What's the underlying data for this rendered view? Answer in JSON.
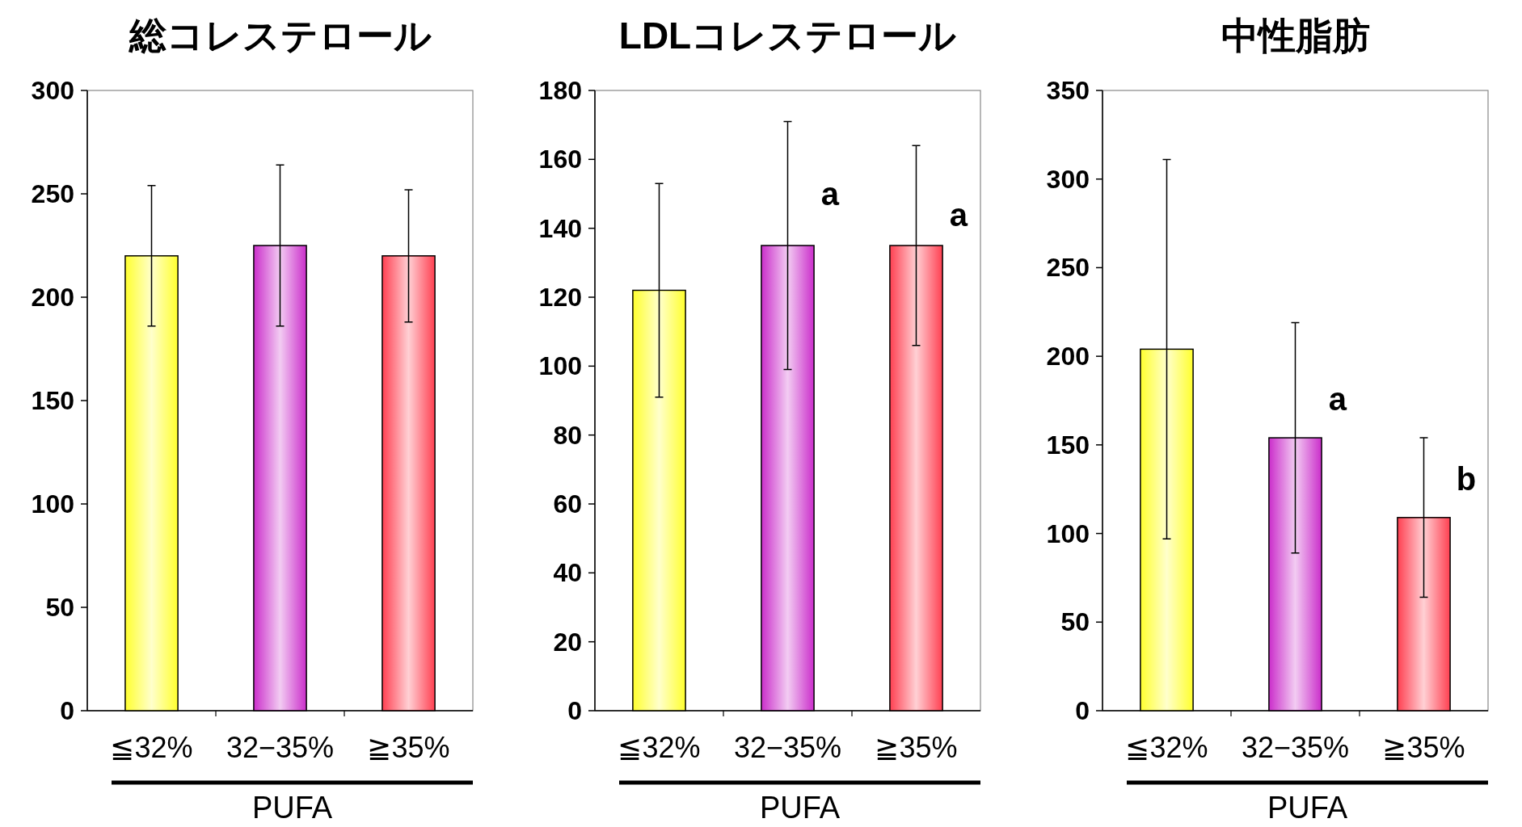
{
  "chart_data": [
    {
      "type": "bar",
      "title": "総コレステロール",
      "xlabel": "PUFA",
      "categories": [
        "≦32%",
        "32−35%",
        "≧35%"
      ],
      "values": [
        220,
        225,
        220
      ],
      "errors": [
        34,
        39,
        32
      ],
      "colors": [
        "#ffff33",
        "#cc33cc",
        "#ff4455"
      ],
      "ylim": [
        0,
        300
      ],
      "yticks": [
        0,
        50,
        100,
        150,
        200,
        250,
        300
      ],
      "grid": false
    },
    {
      "type": "bar",
      "title": "LDLコレステロール",
      "xlabel": "PUFA",
      "categories": [
        "≦32%",
        "32−35%",
        "≧35%"
      ],
      "values": [
        122,
        135,
        135
      ],
      "errors": [
        31,
        36,
        29
      ],
      "colors": [
        "#ffff33",
        "#cc33cc",
        "#ff4455"
      ],
      "ylim": [
        0,
        180
      ],
      "yticks": [
        0,
        20,
        40,
        60,
        80,
        100,
        120,
        140,
        160,
        180
      ],
      "grid": false,
      "annotations": [
        {
          "text": "a",
          "x": "32−35%",
          "y": 150
        },
        {
          "text": "a",
          "x": "≧35%",
          "y": 144
        }
      ]
    },
    {
      "type": "bar",
      "title": "中性脂肪",
      "xlabel": "PUFA",
      "categories": [
        "≦32%",
        "32−35%",
        "≧35%"
      ],
      "values": [
        204,
        154,
        109
      ],
      "errors": [
        107,
        65,
        45
      ],
      "colors": [
        "#ffff33",
        "#cc33cc",
        "#ff4455"
      ],
      "ylim": [
        0,
        350
      ],
      "yticks": [
        0,
        50,
        100,
        150,
        200,
        250,
        300,
        350
      ],
      "grid": false,
      "annotations": [
        {
          "text": "a",
          "x": "32−35%",
          "y": 176
        },
        {
          "text": "b",
          "x": "≧35%",
          "y": 131
        }
      ]
    }
  ]
}
